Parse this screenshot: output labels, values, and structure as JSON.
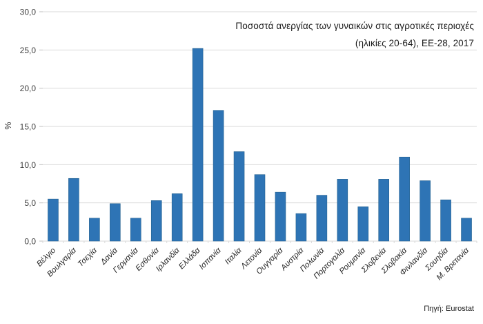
{
  "chart_data": {
    "type": "bar",
    "title_line1": "Ποσοστά ανεργίας των γυναικών στις αγροτικές περιοχές",
    "title_line2": "(ηλικίες 20-64), ΕΕ-28, 2017",
    "ylabel": "%",
    "source": "Πηγή: Eurostat",
    "categories": [
      "Βέλγιο",
      "Βουλγαρία",
      "Τσεχία",
      "Δανία",
      "Γερμανία",
      "Εσθονία",
      "Ιρλανδία",
      "Ελλάδα",
      "Ισπανία",
      "Ιταλία",
      "Λετονία",
      "Ουγγαρία",
      "Αυστρία",
      "Πολωνία",
      "Πορτογαλία",
      "Ρουμανία",
      "Σλοβενία",
      "Σλοβακία",
      "Φινλανδία",
      "Σουηδία",
      "Μ. Βρετανία"
    ],
    "values": [
      5.5,
      8.2,
      3.0,
      4.9,
      3.0,
      5.3,
      6.2,
      25.2,
      17.1,
      11.7,
      8.7,
      6.4,
      3.6,
      6.0,
      8.1,
      4.5,
      8.1,
      11.0,
      7.9,
      5.4,
      3.0
    ],
    "ylim": [
      0,
      30
    ],
    "ytick_values": [
      0,
      5,
      10,
      15,
      20,
      25,
      30
    ],
    "ytick_labels": [
      "0,0",
      "5,0",
      "10,0",
      "15,0",
      "20,0",
      "25,0",
      "30,0"
    ],
    "grid": true,
    "legend": "none",
    "bar_color": "#2E74B5",
    "bar_edge_color": "#24618F",
    "gridline_color": "#D9D9D9",
    "tick_color": "#BFBFBF",
    "text_color": "#262626",
    "axis_text_color": "#404040"
  }
}
